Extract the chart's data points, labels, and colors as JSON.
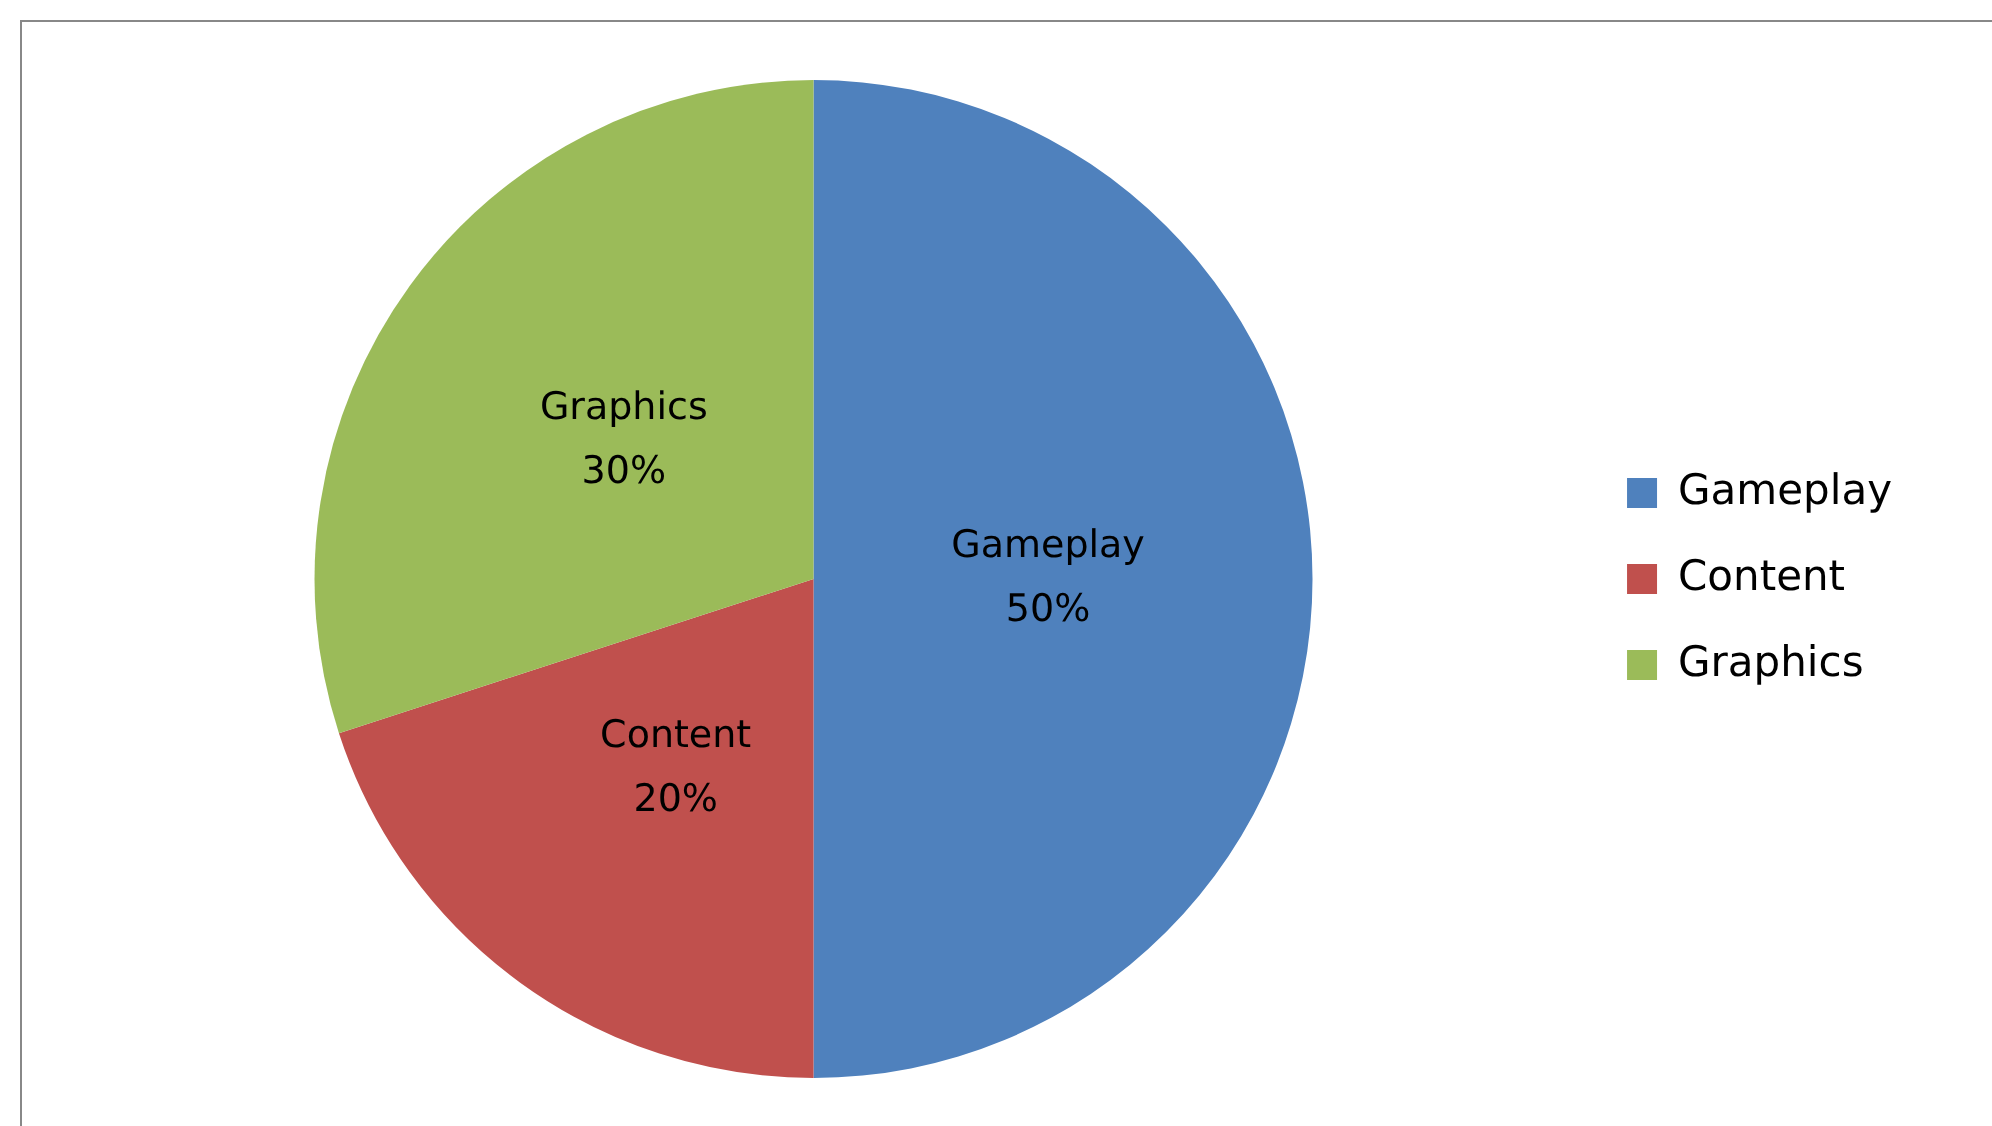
{
  "chart_data": {
    "type": "pie",
    "categories": [
      "Gameplay",
      "Content",
      "Graphics"
    ],
    "values": [
      50,
      20,
      30
    ],
    "colors": [
      "#4f81bd",
      "#c0504d",
      "#9bbb59"
    ],
    "value_labels": [
      "50%",
      "20%",
      "30%"
    ],
    "legend": "right"
  }
}
